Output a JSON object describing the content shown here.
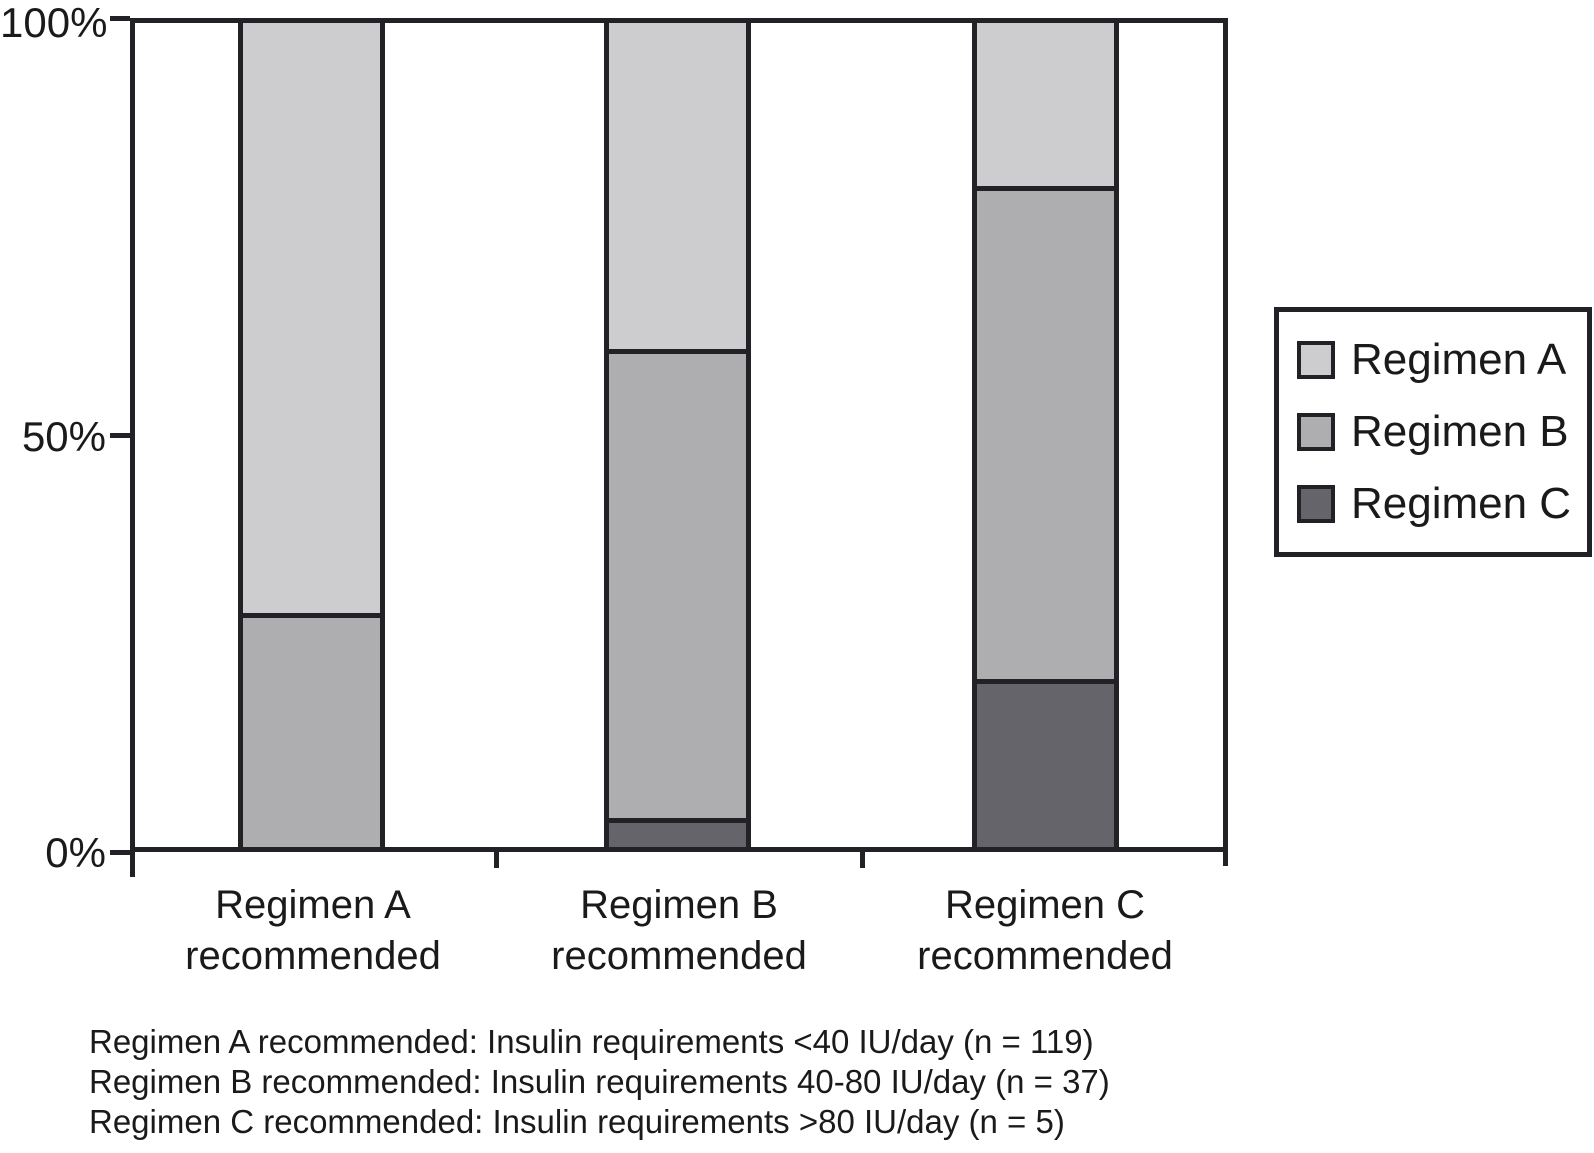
{
  "figure": {
    "background": "#ffffff",
    "stroke_color": "#222226",
    "text_color": "#1a1a1a"
  },
  "chart_data": {
    "type": "bar",
    "stacked": true,
    "orientation": "vertical",
    "categories": [
      [
        "Regimen A",
        "recommended"
      ],
      [
        "Regimen B",
        "recommended"
      ],
      [
        "Regimen C",
        "recommended"
      ]
    ],
    "series": [
      {
        "name": "Regimen A",
        "color": "#cdcdcf",
        "values": [
          72,
          40,
          20
        ]
      },
      {
        "name": "Regimen B",
        "color": "#aeaeb1",
        "values": [
          28,
          57,
          60
        ]
      },
      {
        "name": "Regimen C",
        "color": "#64646a",
        "values": [
          0,
          3,
          20
        ]
      }
    ],
    "yticks": [
      "0%",
      "50%",
      "100%"
    ],
    "ylim": [
      0,
      100
    ],
    "ylabel": "",
    "xlabel": "",
    "grid": false,
    "legend_position": "right"
  },
  "footnotes": [
    "Regimen A recommended: Insulin requirements <40 IU/day (n = 119)",
    "Regimen B recommended: Insulin requirements 40-80 IU/day (n = 37)",
    "Regimen C recommended: Insulin requirements >80 IU/day (n = 5)"
  ]
}
